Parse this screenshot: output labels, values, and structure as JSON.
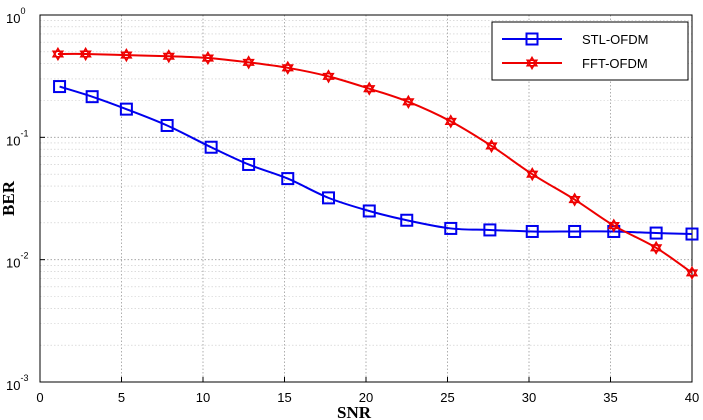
{
  "chart_data": {
    "type": "line",
    "title": "",
    "xlabel": "SNR",
    "ylabel": "BER",
    "xlim": [
      0,
      40
    ],
    "ylim": [
      0.001,
      1
    ],
    "yscale": "log",
    "grid": true,
    "legend_position": "top-right",
    "x_ticks": [
      0,
      5,
      10,
      15,
      20,
      25,
      30,
      35,
      40
    ],
    "y_ticks": [
      {
        "base": "10",
        "exp": "0",
        "value": 1
      },
      {
        "base": "10",
        "exp": "-1",
        "value": 0.1
      },
      {
        "base": "10",
        "exp": "-2",
        "value": 0.01
      },
      {
        "base": "10",
        "exp": "-3",
        "value": 0.001
      }
    ],
    "series": [
      {
        "name": "STL-OFDM",
        "color": "#0000ee",
        "marker": "square",
        "x": [
          1.2,
          3.2,
          5.3,
          7.8,
          10.5,
          12.8,
          15.2,
          17.7,
          20.2,
          22.5,
          25.2,
          27.6,
          30.2,
          32.8,
          35.2,
          37.8,
          40
        ],
        "y": [
          0.26,
          0.215,
          0.17,
          0.125,
          0.083,
          0.06,
          0.046,
          0.032,
          0.025,
          0.021,
          0.018,
          0.0175,
          0.017,
          0.017,
          0.017,
          0.0165,
          0.0162
        ]
      },
      {
        "name": "FFT-OFDM",
        "color": "#ee0000",
        "marker": "hexagram",
        "x": [
          1.1,
          2.8,
          5.3,
          7.9,
          10.3,
          12.8,
          15.2,
          17.7,
          20.2,
          22.6,
          25.2,
          27.7,
          30.2,
          32.8,
          35.2,
          37.8,
          40
        ],
        "y": [
          0.48,
          0.48,
          0.47,
          0.46,
          0.445,
          0.41,
          0.37,
          0.315,
          0.25,
          0.195,
          0.135,
          0.085,
          0.05,
          0.031,
          0.019,
          0.0125,
          0.0078
        ]
      }
    ]
  }
}
